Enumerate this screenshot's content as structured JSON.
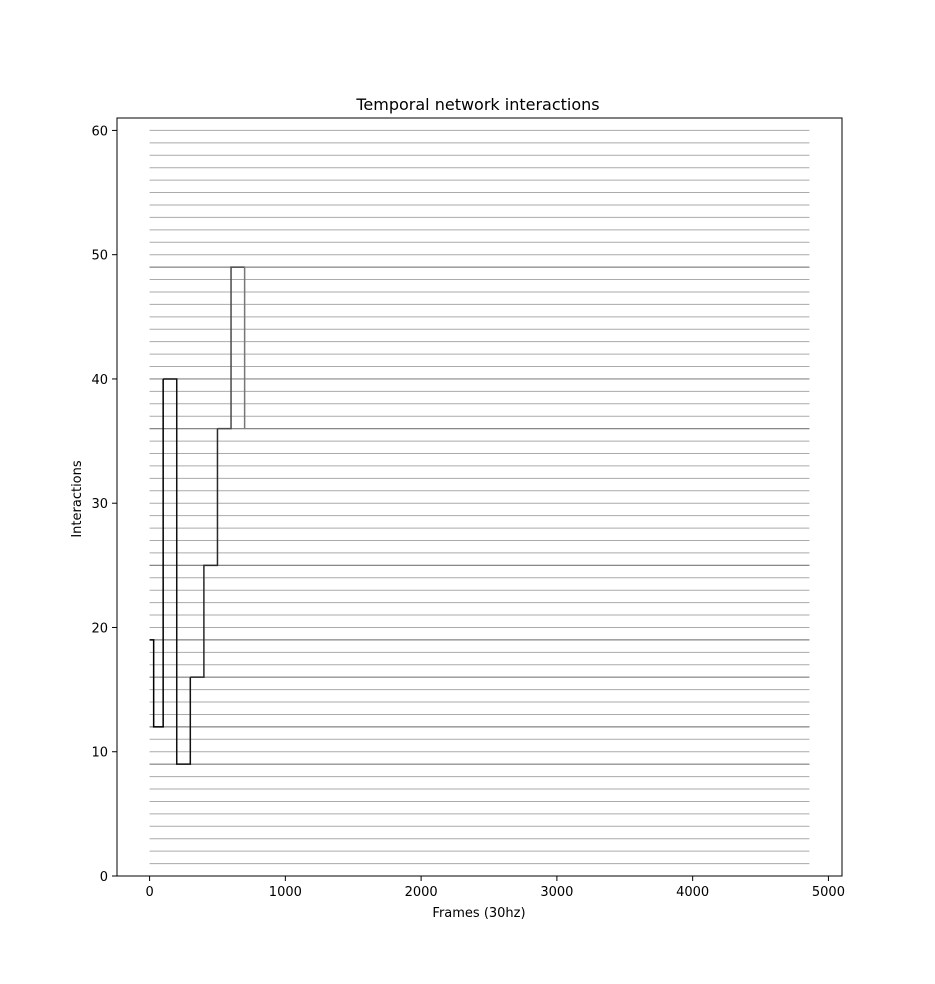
{
  "chart_data": {
    "type": "line",
    "title": "Temporal network interactions",
    "xlabel": "Frames (30hz)",
    "ylabel": "Interactions",
    "xlim": [
      -240,
      5100
    ],
    "ylim": [
      0,
      61
    ],
    "xticks": [
      0,
      1000,
      2000,
      3000,
      4000,
      5000
    ],
    "yticks": [
      0,
      10,
      20,
      30,
      40,
      50,
      60
    ],
    "grid": false,
    "node_lines": {
      "y_values": [
        1,
        2,
        3,
        4,
        5,
        6,
        7,
        8,
        9,
        10,
        11,
        12,
        13,
        14,
        15,
        16,
        17,
        18,
        19,
        20,
        21,
        22,
        23,
        24,
        25,
        26,
        27,
        28,
        29,
        30,
        31,
        32,
        33,
        34,
        35,
        36,
        37,
        38,
        39,
        40,
        41,
        42,
        43,
        44,
        45,
        46,
        47,
        48,
        49,
        50,
        51,
        52,
        53,
        54,
        55,
        56,
        57,
        58,
        59,
        60
      ],
      "x_start": 0,
      "x_end": 4860,
      "color": "#aaaaaa"
    },
    "active_levels": {
      "y_values": [
        9,
        12,
        16,
        19,
        25,
        36,
        40,
        49
      ],
      "color": "#888888"
    },
    "series": [
      {
        "color": "#000000",
        "x": [
          0,
          30,
          30,
          100,
          100
        ],
        "y": [
          19,
          19,
          12,
          12,
          40
        ]
      },
      {
        "color": "#111111",
        "x": [
          100,
          200,
          200,
          300,
          300
        ],
        "y": [
          40,
          40,
          9,
          9,
          16
        ]
      },
      {
        "color": "#2a2a2a",
        "x": [
          300,
          400,
          400,
          500,
          500
        ],
        "y": [
          16,
          16,
          25,
          25,
          36
        ]
      },
      {
        "color": "#4a4a4a",
        "x": [
          500,
          600,
          600,
          700
        ],
        "y": [
          36,
          36,
          49,
          49
        ]
      },
      {
        "color": "#777777",
        "x": [
          700,
          700
        ],
        "y": [
          49,
          36
        ]
      }
    ]
  }
}
